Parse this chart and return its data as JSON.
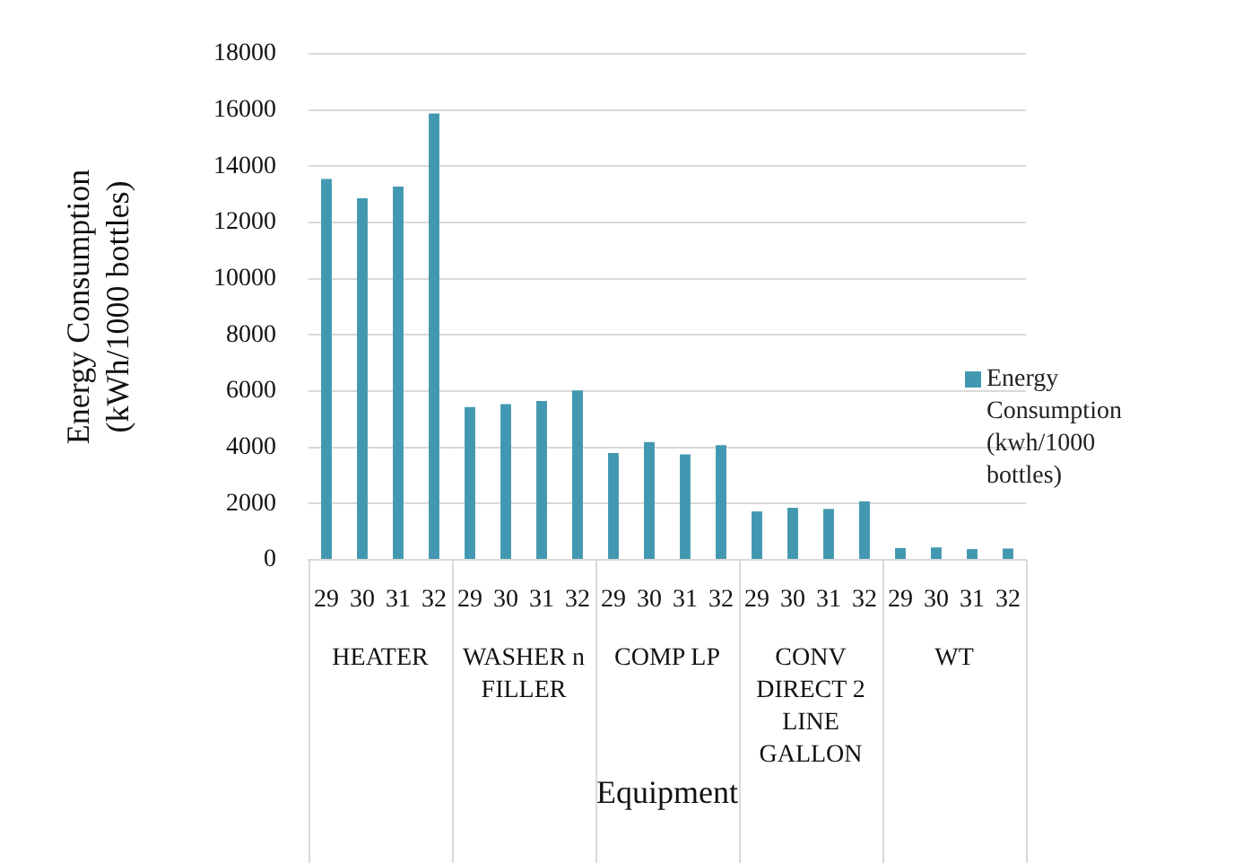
{
  "chart_data": {
    "type": "bar",
    "categories": [
      "29",
      "30",
      "31",
      "32",
      "29",
      "30",
      "31",
      "32",
      "29",
      "30",
      "31",
      "32",
      "29",
      "30",
      "31",
      "32",
      "29",
      "30",
      "31",
      "32"
    ],
    "series": [
      {
        "name": "Energy Consumption (kwh/1000 bottles)",
        "color": "#4298b0",
        "values": [
          13550,
          12860,
          13280,
          15880,
          5430,
          5540,
          5650,
          6020,
          3800,
          4190,
          3750,
          4080,
          1720,
          1850,
          1810,
          2080,
          420,
          440,
          380,
          400
        ]
      }
    ],
    "xlabel": "Equipment",
    "ylabel": "Energy Consumption (kWh/1000 bottles)",
    "annotations": [
      "HEATER",
      "WASHER n FILLER",
      "COMP LP",
      "CONV DIRECT 2 LINE GALLON",
      "WT"
    ],
    "ylim": [
      0,
      18000
    ],
    "yticks": [
      0,
      2000,
      4000,
      6000,
      8000,
      10000,
      12000,
      14000,
      16000,
      18000
    ],
    "grid": "y",
    "legend": "right"
  }
}
